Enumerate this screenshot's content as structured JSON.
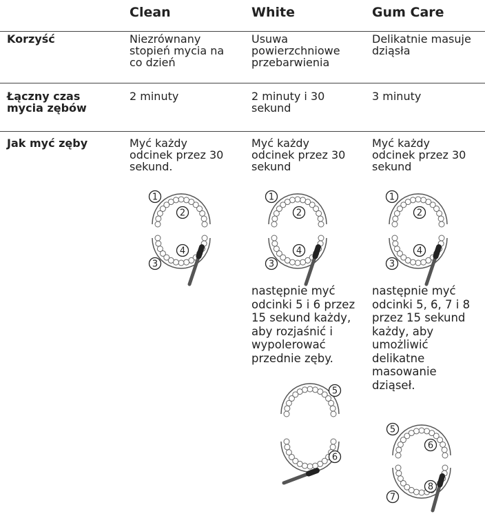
{
  "header": {
    "columns": [
      "Clean",
      "White",
      "Gum Care"
    ]
  },
  "rows": [
    {
      "label": [
        "Korzyść"
      ],
      "cells": [
        [
          "Niezrównany",
          "stopień mycia na",
          "co dzień"
        ],
        [
          "Usuwa",
          "powierzchniowe",
          "przebarwienia"
        ],
        [
          "Delikatnie masuje",
          "dziąsła"
        ]
      ]
    },
    {
      "label": [
        "Łączny czas",
        "mycia zębów"
      ],
      "cells": [
        [
          "2 minuty"
        ],
        [
          "2 minuty i 30",
          "sekund"
        ],
        [
          "3 minuty"
        ]
      ]
    },
    {
      "label": [
        "Jak myć zęby"
      ],
      "cells": [
        [
          "Myć każdy",
          "odcinek przez 30",
          "sekund."
        ],
        [
          "Myć każdy",
          "odcinek przez 30",
          "sekund"
        ],
        [
          "Myć każdy",
          "odcinek przez 30",
          "sekund"
        ]
      ]
    }
  ],
  "extra": {
    "white": [
      "następnie myć",
      "odcinki 5 i 6 przez",
      "15 sekund każdy,",
      "aby rozjaśnić i",
      "wypolerować",
      "przednie zęby."
    ],
    "gum_care": [
      "następnie myć",
      "odcinki 5, 6, 7 i 8",
      "przez 15 sekund",
      "każdy, aby",
      "umożliwić",
      "delikatne",
      "masowanie",
      "dziąseł."
    ]
  },
  "diagrams": {
    "clean": [
      "1",
      "2",
      "3",
      "4"
    ],
    "white": [
      "1",
      "2",
      "3",
      "4"
    ],
    "gum_care": [
      "1",
      "2",
      "3",
      "4"
    ],
    "white_extra": [
      "5",
      "6"
    ],
    "gum_care_extra": [
      "5",
      "6",
      "7",
      "8"
    ]
  }
}
